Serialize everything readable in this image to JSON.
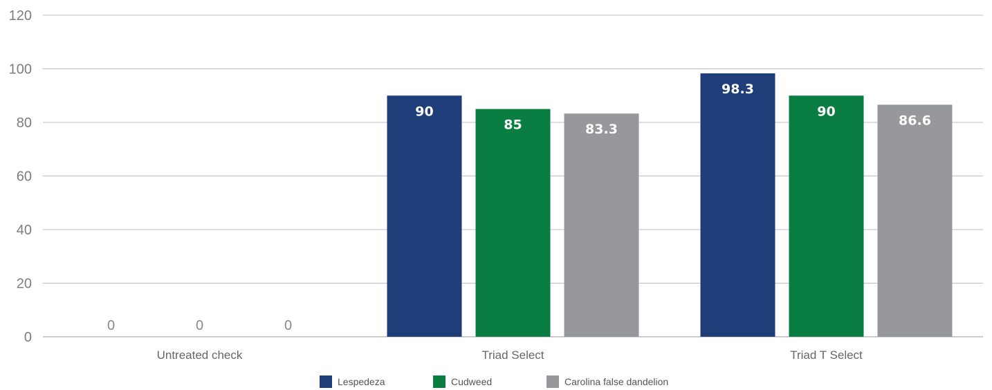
{
  "chart_data": {
    "type": "bar",
    "categories": [
      "Untreated check",
      "Triad Select",
      "Triad T Select"
    ],
    "series": [
      {
        "name": "Lespedeza",
        "values": [
          0,
          90,
          98.3
        ],
        "labels": [
          "0",
          "90",
          "98.3"
        ],
        "color": "#1f3d78"
      },
      {
        "name": "Cudweed",
        "values": [
          0,
          85,
          90
        ],
        "labels": [
          "0",
          "85",
          "90"
        ],
        "color": "#0a7e42"
      },
      {
        "name": "Carolina false dandelion",
        "values": [
          0,
          83.3,
          86.6
        ],
        "labels": [
          "0",
          "83.3",
          "86.6"
        ],
        "color": "#97989b"
      }
    ],
    "ylim": [
      0,
      120
    ],
    "yticks": [
      0,
      20,
      40,
      60,
      80,
      100,
      120
    ],
    "grid": true,
    "legend": "bottom-center",
    "title": "",
    "xlabel": "",
    "ylabel": ""
  }
}
